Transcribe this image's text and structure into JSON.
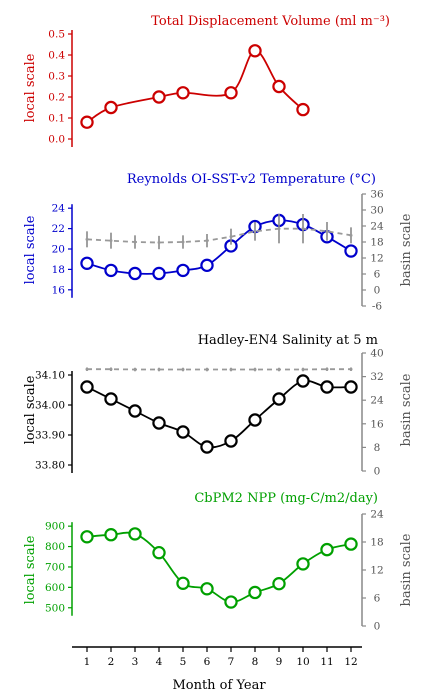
{
  "chart_data": [
    {
      "type": "line",
      "title": "Total Displacement Volume (ml m⁻³)",
      "color": "#cc0000",
      "ylabel": "local scale",
      "ylabel_right": "",
      "x": [
        1,
        2,
        3,
        4,
        5,
        6,
        7,
        8,
        9,
        10,
        11,
        12
      ],
      "ylim": [
        0.0,
        0.5
      ],
      "yticks": [
        "0.0",
        "0.1",
        "0.2",
        "0.3",
        "0.4",
        "0.5"
      ],
      "series": [
        {
          "values": [
            0.08,
            0.15,
            null,
            0.2,
            0.22,
            null,
            0.22,
            0.42,
            0.25,
            0.14,
            null,
            null
          ]
        }
      ],
      "curve_notes": "line interpolates smoothly through markers"
    },
    {
      "type": "line",
      "title": "Reynolds OI-SST-v2 Temperature (°C)",
      "color": "#0000cc",
      "ylabel": "local scale",
      "ylabel_right": "basin scale",
      "x": [
        1,
        2,
        3,
        4,
        5,
        6,
        7,
        8,
        9,
        10,
        11,
        12
      ],
      "ylim": [
        15,
        25
      ],
      "yticks": [
        "16",
        "18",
        "20",
        "22",
        "24"
      ],
      "ylim_right": [
        -6,
        36
      ],
      "yticks_right": [
        "-6",
        "0",
        "6",
        "12",
        "18",
        "24",
        "30",
        "36"
      ],
      "series": [
        {
          "values": [
            18.6,
            17.9,
            17.6,
            17.6,
            17.9,
            18.4,
            20.3,
            22.2,
            22.8,
            22.4,
            21.2,
            19.8
          ]
        },
        {
          "axis": "right",
          "style": "dashed-gray",
          "values": [
            19.0,
            18.5,
            18.0,
            17.8,
            18.0,
            18.5,
            20.0,
            22.0,
            23.0,
            23.0,
            22.0,
            20.5
          ],
          "error": [
            3.0,
            3.0,
            2.5,
            2.5,
            2.5,
            2.5,
            3.0,
            3.5,
            5.5,
            5.5,
            3.5,
            3.0
          ]
        }
      ]
    },
    {
      "type": "line",
      "title": "Hadley-EN4 Salinity at 5 m",
      "color": "#000000",
      "ylabel": "local scale",
      "ylabel_right": "basin scale",
      "x": [
        1,
        2,
        3,
        4,
        5,
        6,
        7,
        8,
        9,
        10,
        11,
        12
      ],
      "ylim": [
        33.8,
        34.16
      ],
      "yticks": [
        "33.80",
        "33.90",
        "34.00",
        "34.10"
      ],
      "ylim_right": [
        0,
        40
      ],
      "yticks_right": [
        "0",
        "8",
        "16",
        "24",
        "32",
        "40"
      ],
      "series": [
        {
          "values": [
            34.06,
            34.02,
            33.98,
            33.94,
            33.91,
            33.86,
            33.88,
            33.95,
            34.02,
            34.08,
            34.06,
            34.06
          ]
        },
        {
          "axis": "right",
          "style": "dashed-gray",
          "values": [
            34.5,
            34.5,
            34.4,
            34.4,
            34.4,
            34.4,
            34.4,
            34.4,
            34.4,
            34.4,
            34.5,
            34.5
          ],
          "error": [
            0.6,
            0.6,
            0.6,
            0.6,
            0.6,
            0.6,
            0.6,
            0.6,
            0.6,
            0.6,
            0.6,
            0.6
          ]
        }
      ]
    },
    {
      "type": "line",
      "title": "CbPM2 NPP (mg-C/m2/day)",
      "color": "#00a000",
      "ylabel": "local scale",
      "ylabel_right": "basin scale",
      "x": [
        1,
        2,
        3,
        4,
        5,
        6,
        7,
        8,
        9,
        10,
        11,
        12
      ],
      "ylim": [
        440,
        940
      ],
      "yticks": [
        "500",
        "600",
        "700",
        "800",
        "900"
      ],
      "ylim_right": [
        0,
        24
      ],
      "yticks_right": [
        "0",
        "6",
        "12",
        "18",
        "24"
      ],
      "series": [
        {
          "values": [
            848,
            858,
            862,
            770,
            620,
            593,
            528,
            575,
            618,
            715,
            785,
            812
          ]
        }
      ]
    }
  ],
  "x_axis": {
    "label": "Month of Year",
    "ticks": [
      "1",
      "2",
      "3",
      "4",
      "5",
      "6",
      "7",
      "8",
      "9",
      "10",
      "11",
      "12"
    ]
  }
}
